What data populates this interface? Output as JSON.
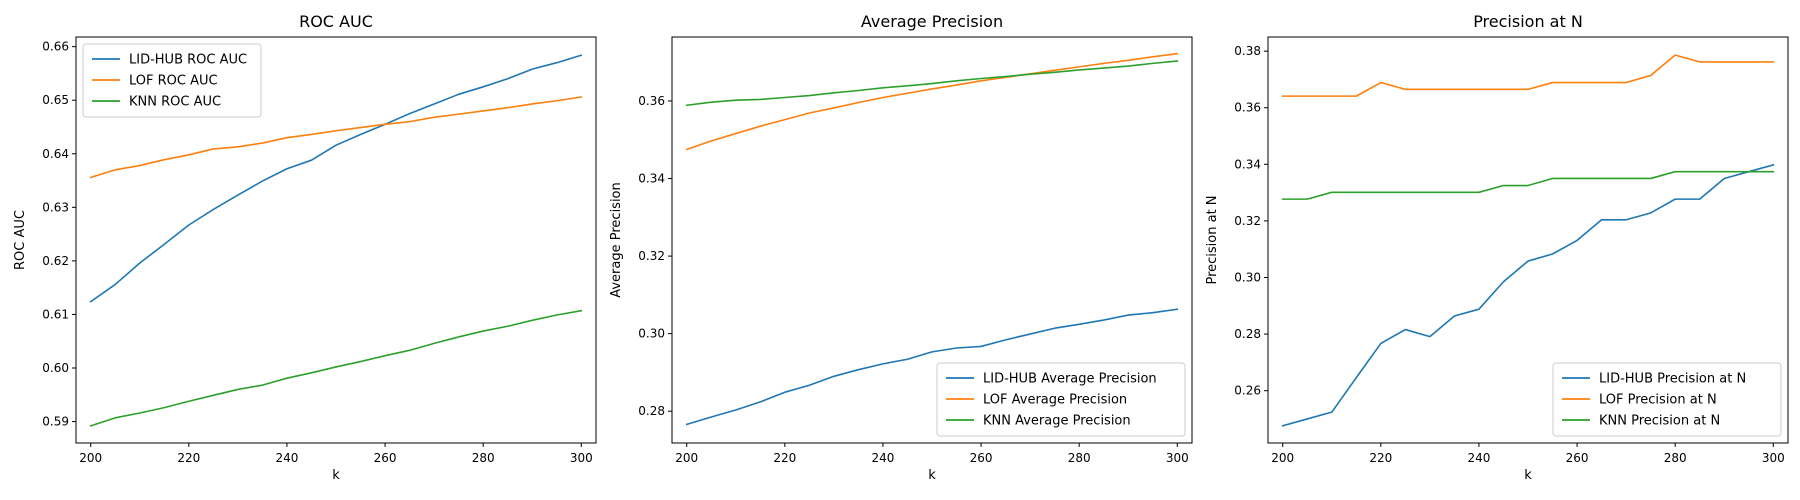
{
  "chart_data": [
    {
      "type": "line",
      "title": "ROC AUC",
      "xlabel": "k",
      "ylabel": "ROC AUC",
      "xlim": [
        197,
        303
      ],
      "ylim": [
        0.586,
        0.6618
      ],
      "xticks": [
        200,
        220,
        240,
        260,
        280,
        300
      ],
      "yticks": [
        0.59,
        0.6,
        0.61,
        0.62,
        0.63,
        0.64,
        0.65,
        0.66
      ],
      "ytick_labels": [
        "0.59",
        "0.60",
        "0.61",
        "0.62",
        "0.63",
        "0.64",
        "0.65",
        "0.66"
      ],
      "legend_position": "upper-left",
      "x": [
        200,
        205,
        210,
        215,
        220,
        225,
        230,
        235,
        240,
        245,
        250,
        255,
        260,
        265,
        270,
        275,
        280,
        285,
        290,
        295,
        300
      ],
      "series": [
        {
          "name": "LID-HUB ROC AUC",
          "color": "#1f77b4",
          "values": [
            0.6124,
            0.6156,
            0.6196,
            0.6231,
            0.6267,
            0.6296,
            0.6323,
            0.6349,
            0.6372,
            0.6388,
            0.6416,
            0.6436,
            0.6455,
            0.6475,
            0.6493,
            0.6511,
            0.6525,
            0.654,
            0.6558,
            0.657,
            0.6584
          ]
        },
        {
          "name": "LOF ROC AUC",
          "color": "#ff7f0e",
          "values": [
            0.6356,
            0.637,
            0.6378,
            0.6389,
            0.6398,
            0.6409,
            0.6413,
            0.642,
            0.643,
            0.6436,
            0.6443,
            0.6449,
            0.6455,
            0.646,
            0.6468,
            0.6474,
            0.648,
            0.6486,
            0.6493,
            0.6499,
            0.6506
          ]
        },
        {
          "name": "KNN ROC AUC",
          "color": "#2ca02c",
          "values": [
            0.5892,
            0.5907,
            0.5916,
            0.5926,
            0.5938,
            0.5949,
            0.596,
            0.5968,
            0.5981,
            0.5991,
            0.6002,
            0.6012,
            0.6023,
            0.6033,
            0.6046,
            0.6058,
            0.6069,
            0.6078,
            0.6089,
            0.6099,
            0.6107
          ]
        }
      ]
    },
    {
      "type": "line",
      "title": "Average Precision",
      "xlabel": "k",
      "ylabel": "Average Precision",
      "xlim": [
        197,
        303
      ],
      "ylim": [
        0.2718,
        0.3765
      ],
      "xticks": [
        200,
        220,
        240,
        260,
        280,
        300
      ],
      "yticks": [
        0.28,
        0.3,
        0.32,
        0.34,
        0.36
      ],
      "ytick_labels": [
        "0.28",
        "0.30",
        "0.32",
        "0.34",
        "0.36"
      ],
      "legend_position": "lower-right",
      "x": [
        200,
        205,
        210,
        215,
        220,
        225,
        230,
        235,
        240,
        245,
        250,
        255,
        260,
        265,
        270,
        275,
        280,
        285,
        290,
        295,
        300
      ],
      "series": [
        {
          "name": "LID-HUB Average Precision",
          "color": "#1f77b4",
          "values": [
            0.2766,
            0.2785,
            0.2803,
            0.2824,
            0.2849,
            0.2867,
            0.289,
            0.2907,
            0.2922,
            0.2934,
            0.2953,
            0.2963,
            0.2967,
            0.2984,
            0.2999,
            0.3014,
            0.3024,
            0.3035,
            0.3048,
            0.3054,
            0.3063
          ]
        },
        {
          "name": "LOF Average Precision",
          "color": "#ff7f0e",
          "values": [
            0.3475,
            0.3497,
            0.3516,
            0.3535,
            0.3552,
            0.3569,
            0.3582,
            0.3596,
            0.3609,
            0.362,
            0.3631,
            0.3641,
            0.3652,
            0.3661,
            0.367,
            0.3679,
            0.3688,
            0.3697,
            0.3705,
            0.3714,
            0.3722
          ]
        },
        {
          "name": "KNN Average Precision",
          "color": "#2ca02c",
          "values": [
            0.3589,
            0.3597,
            0.3602,
            0.3604,
            0.3609,
            0.3614,
            0.3621,
            0.3627,
            0.3634,
            0.3639,
            0.3645,
            0.3652,
            0.3658,
            0.3663,
            0.3669,
            0.3674,
            0.368,
            0.3685,
            0.369,
            0.3697,
            0.3703
          ]
        }
      ]
    },
    {
      "type": "line",
      "title": "Precision at N",
      "xlabel": "k",
      "ylabel": "Precision at N",
      "xlim": [
        197,
        303
      ],
      "ylim": [
        0.2415,
        0.385
      ],
      "xticks": [
        200,
        220,
        240,
        260,
        280,
        300
      ],
      "yticks": [
        0.26,
        0.28,
        0.3,
        0.32,
        0.34,
        0.36,
        0.38
      ],
      "ytick_labels": [
        "0.26",
        "0.28",
        "0.30",
        "0.32",
        "0.34",
        "0.36",
        "0.38"
      ],
      "legend_position": "lower-right",
      "x": [
        200,
        205,
        210,
        215,
        220,
        225,
        230,
        235,
        240,
        245,
        250,
        255,
        260,
        265,
        270,
        275,
        280,
        285,
        290,
        295,
        300
      ],
      "series": [
        {
          "name": "LID-HUB Precision at N",
          "color": "#1f77b4",
          "values": [
            0.2476,
            0.25,
            0.2524,
            0.2646,
            0.2767,
            0.2816,
            0.2791,
            0.2864,
            0.2888,
            0.2985,
            0.3058,
            0.3083,
            0.3131,
            0.3204,
            0.3204,
            0.3228,
            0.3277,
            0.3277,
            0.335,
            0.3374,
            0.3398
          ]
        },
        {
          "name": "LOF Precision at N",
          "color": "#ff7f0e",
          "values": [
            0.3641,
            0.3641,
            0.3641,
            0.3641,
            0.3689,
            0.3665,
            0.3665,
            0.3665,
            0.3665,
            0.3665,
            0.3665,
            0.3689,
            0.3689,
            0.3689,
            0.3689,
            0.3714,
            0.3786,
            0.3762,
            0.3762,
            0.3762,
            0.3762
          ]
        },
        {
          "name": "KNN Precision at N",
          "color": "#2ca02c",
          "values": [
            0.3277,
            0.3277,
            0.3301,
            0.3301,
            0.3301,
            0.3301,
            0.3301,
            0.3301,
            0.3301,
            0.3325,
            0.3325,
            0.335,
            0.335,
            0.335,
            0.335,
            0.335,
            0.3374,
            0.3374,
            0.3374,
            0.3374,
            0.3374
          ]
        }
      ]
    }
  ]
}
